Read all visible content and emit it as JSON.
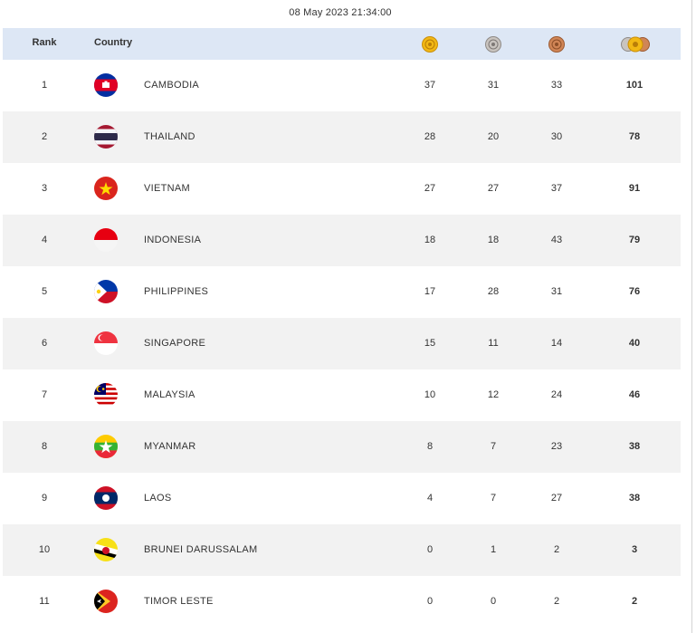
{
  "timestamp": "08 May 2023  21:34:00",
  "header": {
    "rank": "Rank",
    "country": "Country",
    "icons": [
      "gold-medal-icon",
      "silver-medal-icon",
      "bronze-medal-icon",
      "total-medals-icon"
    ]
  },
  "colors": {
    "header_bg": "#dde7f5",
    "row_alt_bg": "#f2f2f2",
    "gold": "#f2b814",
    "silver": "#b8b4b0",
    "bronze": "#cd7f52"
  },
  "rows": [
    {
      "rank": "1",
      "country": "CAMBODIA",
      "flag": "cambodia-flag-icon",
      "gold": "37",
      "silver": "31",
      "bronze": "33",
      "total": "101"
    },
    {
      "rank": "2",
      "country": "THAILAND",
      "flag": "thailand-flag-icon",
      "gold": "28",
      "silver": "20",
      "bronze": "30",
      "total": "78"
    },
    {
      "rank": "3",
      "country": "VIETNAM",
      "flag": "vietnam-flag-icon",
      "gold": "27",
      "silver": "27",
      "bronze": "37",
      "total": "91"
    },
    {
      "rank": "4",
      "country": "INDONESIA",
      "flag": "indonesia-flag-icon",
      "gold": "18",
      "silver": "18",
      "bronze": "43",
      "total": "79"
    },
    {
      "rank": "5",
      "country": "PHILIPPINES",
      "flag": "philippines-flag-icon",
      "gold": "17",
      "silver": "28",
      "bronze": "31",
      "total": "76"
    },
    {
      "rank": "6",
      "country": "SINGAPORE",
      "flag": "singapore-flag-icon",
      "gold": "15",
      "silver": "11",
      "bronze": "14",
      "total": "40"
    },
    {
      "rank": "7",
      "country": "MALAYSIA",
      "flag": "malaysia-flag-icon",
      "gold": "10",
      "silver": "12",
      "bronze": "24",
      "total": "46"
    },
    {
      "rank": "8",
      "country": "MYANMAR",
      "flag": "myanmar-flag-icon",
      "gold": "8",
      "silver": "7",
      "bronze": "23",
      "total": "38"
    },
    {
      "rank": "9",
      "country": "LAOS",
      "flag": "laos-flag-icon",
      "gold": "4",
      "silver": "7",
      "bronze": "27",
      "total": "38"
    },
    {
      "rank": "10",
      "country": "BRUNEI DARUSSALAM",
      "flag": "brunei-flag-icon",
      "gold": "0",
      "silver": "1",
      "bronze": "2",
      "total": "3"
    },
    {
      "rank": "11",
      "country": "TIMOR LESTE",
      "flag": "timor-leste-flag-icon",
      "gold": "0",
      "silver": "0",
      "bronze": "2",
      "total": "2"
    }
  ]
}
